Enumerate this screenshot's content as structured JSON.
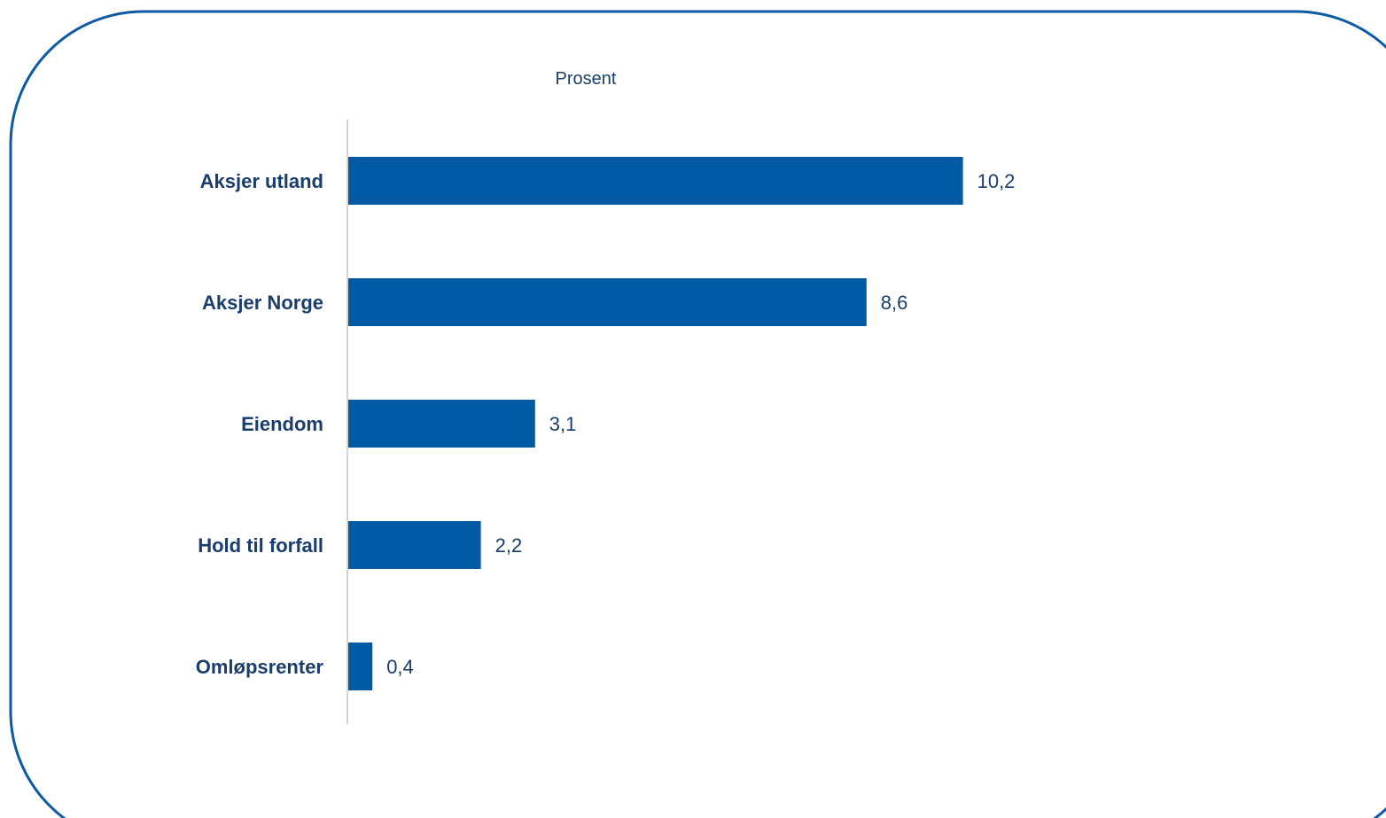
{
  "colors": {
    "bar": "#005aa4",
    "frame": "#0b5aa3",
    "axis": "#d4d4d4",
    "text": "#1a3d6b"
  },
  "chart_data": {
    "type": "bar",
    "orientation": "horizontal",
    "unit_label": "Prosent",
    "categories": [
      "Aksjer utland",
      "Aksjer Norge",
      "Eiendom",
      "Hold til forfall",
      "Omløpsrenter"
    ],
    "values": [
      10.2,
      8.6,
      3.1,
      2.2,
      0.4
    ],
    "value_labels": [
      "10,2",
      "8,6",
      "3,1",
      "2,2",
      "0,4"
    ],
    "xlim": [
      0,
      17.5
    ],
    "grid": false,
    "legend": "none"
  }
}
